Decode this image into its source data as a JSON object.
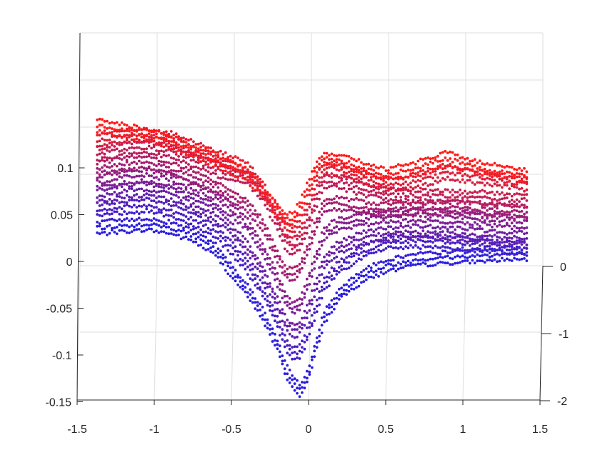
{
  "chart_data": {
    "type": "scatter",
    "view": "3d",
    "title": "",
    "xlabel": "",
    "ylabel": "",
    "zlabel": "",
    "x_ticks": [
      "-1.5",
      "-1",
      "-0.5",
      "0",
      "0.5",
      "1",
      "1.5"
    ],
    "z_ticks": [
      "-0.15",
      "-0.1",
      "-0.05",
      "0",
      "0.05",
      "0.1"
    ],
    "y_ticks": [
      "-2",
      "-1",
      "0"
    ],
    "xlim": [
      -1.5,
      1.5
    ],
    "ylim": [
      -2,
      0
    ],
    "zlim": [
      -0.15,
      0.15
    ],
    "grid": true,
    "color_low": "#2a1ee0",
    "color_high": "#ff1a1a",
    "series": [
      {
        "y": -1.8,
        "x": [
          -1.35,
          -1.2,
          -1.05,
          -0.9,
          -0.75,
          -0.6,
          -0.5,
          -0.4,
          -0.3,
          -0.2,
          -0.15,
          -0.1,
          -0.05,
          0.0,
          0.05,
          0.1,
          0.2,
          0.35,
          0.5,
          0.7,
          0.9,
          1.1,
          1.3,
          1.4
        ],
        "z": [
          0.036,
          0.038,
          0.04,
          0.036,
          0.028,
          0.012,
          -0.01,
          -0.03,
          -0.055,
          -0.09,
          -0.115,
          -0.13,
          -0.138,
          -0.12,
          -0.09,
          -0.06,
          -0.035,
          -0.015,
          -0.005,
          0.002,
          0.004,
          0.006,
          0.008,
          0.008
        ]
      },
      {
        "y": -1.55,
        "x": [
          -1.35,
          -1.2,
          -1.05,
          -0.9,
          -0.75,
          -0.6,
          -0.5,
          -0.4,
          -0.3,
          -0.2,
          -0.15,
          -0.1,
          -0.05,
          0.0,
          0.05,
          0.1,
          0.2,
          0.35,
          0.5,
          0.7,
          0.9,
          1.1,
          1.3,
          1.4
        ],
        "z": [
          0.055,
          0.058,
          0.06,
          0.055,
          0.045,
          0.032,
          0.015,
          -0.005,
          -0.03,
          -0.065,
          -0.088,
          -0.1,
          -0.095,
          -0.075,
          -0.05,
          -0.025,
          -0.005,
          0.01,
          0.02,
          0.022,
          0.02,
          0.018,
          0.015,
          0.014
        ]
      },
      {
        "y": -1.3,
        "x": [
          -1.35,
          -1.2,
          -1.05,
          -0.9,
          -0.75,
          -0.6,
          -0.5,
          -0.4,
          -0.3,
          -0.2,
          -0.15,
          -0.1,
          -0.05,
          0.0,
          0.05,
          0.1,
          0.2,
          0.35,
          0.5,
          0.7,
          0.9,
          1.1,
          1.3,
          1.4
        ],
        "z": [
          0.07,
          0.075,
          0.077,
          0.072,
          0.062,
          0.05,
          0.035,
          0.015,
          -0.01,
          -0.045,
          -0.065,
          -0.075,
          -0.07,
          -0.05,
          -0.025,
          0.0,
          0.015,
          0.025,
          0.03,
          0.032,
          0.03,
          0.028,
          0.025,
          0.024
        ]
      },
      {
        "y": -1.05,
        "x": [
          -1.35,
          -1.2,
          -1.05,
          -0.9,
          -0.75,
          -0.6,
          -0.5,
          -0.4,
          -0.3,
          -0.2,
          -0.15,
          -0.1,
          -0.05,
          0.0,
          0.05,
          0.1,
          0.2,
          0.35,
          0.5,
          0.7,
          0.9,
          1.1,
          1.3,
          1.4
        ],
        "z": [
          0.085,
          0.09,
          0.092,
          0.088,
          0.078,
          0.066,
          0.055,
          0.04,
          0.015,
          -0.02,
          -0.04,
          -0.05,
          -0.045,
          -0.02,
          0.005,
          0.03,
          0.04,
          0.045,
          0.048,
          0.05,
          0.048,
          0.046,
          0.043,
          0.042
        ]
      },
      {
        "y": -0.8,
        "x": [
          -1.35,
          -1.2,
          -1.05,
          -0.9,
          -0.75,
          -0.6,
          -0.5,
          -0.4,
          -0.3,
          -0.2,
          -0.15,
          -0.1,
          -0.05,
          0.0,
          0.05,
          0.1,
          0.2,
          0.35,
          0.5,
          0.7,
          0.9,
          1.1,
          1.3,
          1.4
        ],
        "z": [
          0.1,
          0.104,
          0.106,
          0.1,
          0.09,
          0.08,
          0.07,
          0.06,
          0.04,
          0.005,
          -0.012,
          -0.015,
          -0.005,
          0.015,
          0.04,
          0.06,
          0.062,
          0.058,
          0.055,
          0.056,
          0.058,
          0.056,
          0.054,
          0.052
        ]
      },
      {
        "y": -0.55,
        "x": [
          -1.35,
          -1.2,
          -1.05,
          -0.9,
          -0.75,
          -0.6,
          -0.5,
          -0.4,
          -0.3,
          -0.2,
          -0.15,
          -0.1,
          -0.05,
          0.0,
          0.05,
          0.1,
          0.2,
          0.35,
          0.5,
          0.7,
          0.9,
          1.1,
          1.3,
          1.4
        ],
        "z": [
          0.115,
          0.12,
          0.122,
          0.118,
          0.108,
          0.098,
          0.092,
          0.09,
          0.072,
          0.04,
          0.02,
          0.012,
          0.02,
          0.04,
          0.065,
          0.085,
          0.085,
          0.078,
          0.072,
          0.07,
          0.07,
          0.068,
          0.066,
          0.065
        ]
      },
      {
        "y": -0.3,
        "x": [
          -1.35,
          -1.2,
          -1.05,
          -0.9,
          -0.75,
          -0.6,
          -0.5,
          -0.4,
          -0.3,
          -0.2,
          -0.15,
          -0.1,
          -0.05,
          0.0,
          0.05,
          0.1,
          0.2,
          0.35,
          0.5,
          0.7,
          0.9,
          1.1,
          1.3,
          1.4
        ],
        "z": [
          0.13,
          0.134,
          0.135,
          0.132,
          0.122,
          0.112,
          0.106,
          0.1,
          0.08,
          0.05,
          0.035,
          0.03,
          0.04,
          0.06,
          0.085,
          0.1,
          0.098,
          0.09,
          0.082,
          0.085,
          0.095,
          0.09,
          0.085,
          0.083
        ]
      },
      {
        "y": -0.05,
        "x": [
          -1.35,
          -1.2,
          -1.05,
          -0.9,
          -0.75,
          -0.6,
          -0.5,
          -0.4,
          -0.3,
          -0.2,
          -0.15,
          -0.1,
          -0.05,
          0.0,
          0.05,
          0.1,
          0.2,
          0.35,
          0.5,
          0.7,
          0.9,
          1.1,
          1.3,
          1.4
        ],
        "z": [
          0.145,
          0.14,
          0.136,
          0.128,
          0.118,
          0.108,
          0.1,
          0.092,
          0.075,
          0.055,
          0.045,
          0.045,
          0.06,
          0.08,
          0.1,
          0.11,
          0.108,
          0.1,
          0.092,
          0.1,
          0.11,
          0.1,
          0.094,
          0.092
        ]
      }
    ]
  }
}
